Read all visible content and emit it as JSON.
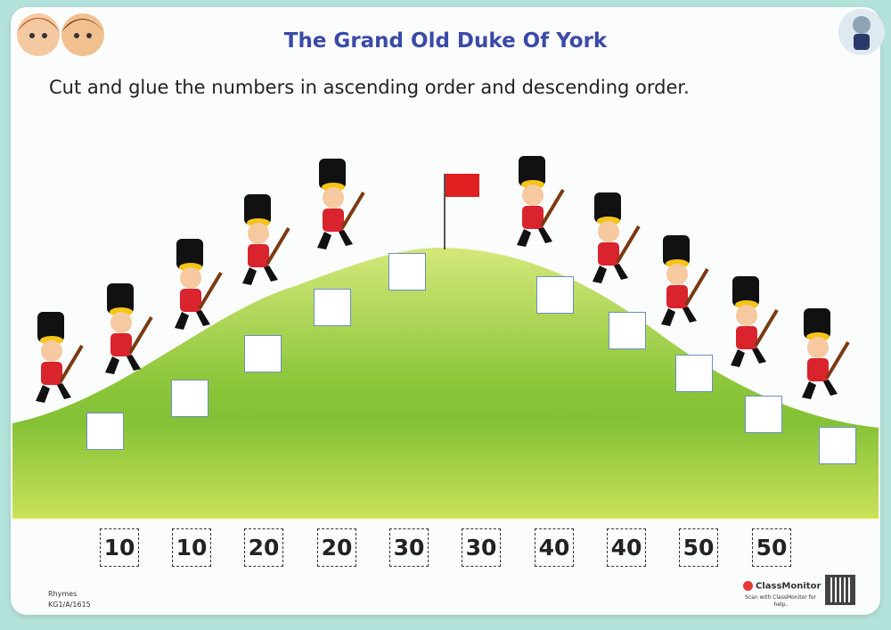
{
  "header": {
    "title": "The Grand Old Duke Of York",
    "instruction": "Cut and glue the numbers in ascending order and descending order."
  },
  "numbers": [
    "10",
    "10",
    "20",
    "20",
    "30",
    "30",
    "40",
    "40",
    "50",
    "50"
  ],
  "footer": {
    "category": "Rhymes",
    "code": "KG1/A/1615",
    "brand": "ClassMonitor",
    "scan_text": "Scan with ClassMonitor for help."
  },
  "colors": {
    "background": "#b2e2d9",
    "title": "#3b4aa6",
    "hill": "#8fc93a",
    "flag": "#e02020"
  },
  "icons": [
    "kids-logo",
    "cat-mascot",
    "soldier",
    "flag",
    "qr-code"
  ]
}
